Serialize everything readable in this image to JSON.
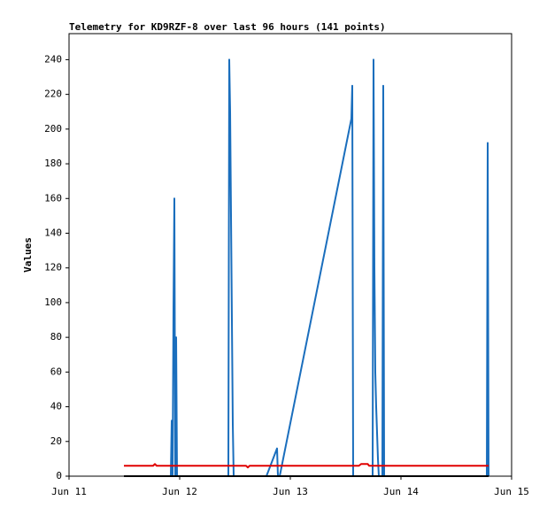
{
  "chart_data": {
    "type": "line",
    "title": "Telemetry for KD9RZF-8 over last 96 hours (141 points)",
    "y_label": "Values",
    "xlim": [
      11,
      15
    ],
    "xticks": [
      {
        "value": 11,
        "label": "Jun 11"
      },
      {
        "value": 12,
        "label": "Jun 12"
      },
      {
        "value": 13,
        "label": "Jun 13"
      },
      {
        "value": 14,
        "label": "Jun 14"
      },
      {
        "value": 15,
        "label": "Jun 15"
      }
    ],
    "ylim": [
      0,
      255
    ],
    "yticks": [
      0,
      20,
      40,
      60,
      80,
      100,
      120,
      140,
      160,
      180,
      200,
      220,
      240
    ],
    "series": [
      {
        "color": "#000000",
        "x": [
          11.496,
          14.792
        ],
        "values": [
          0,
          0
        ]
      },
      {
        "color": "#e00000",
        "x": [
          11.496,
          11.76,
          11.776,
          11.792,
          12.6,
          12.616,
          12.632,
          12.9,
          13.62,
          13.64,
          13.7,
          13.712,
          14.792
        ],
        "values": [
          6,
          6,
          7,
          6,
          6,
          5,
          6,
          6,
          6,
          7,
          7,
          6,
          6
        ]
      },
      {
        "color": "#1a6ebd",
        "x": [
          11.496,
          11.92,
          11.928,
          11.936,
          11.944,
          11.952,
          11.96,
          11.968,
          11.976,
          12.44,
          12.448,
          12.456,
          12.464,
          12.472,
          12.48,
          12.488,
          12.784,
          12.88,
          12.888,
          12.904,
          13.552,
          13.56,
          13.568,
          13.744,
          13.752,
          13.76,
          13.768,
          13.776,
          13.784,
          13.792,
          13.8,
          13.832,
          13.84,
          13.848,
          14.776,
          14.784,
          14.792
        ],
        "values": [
          0,
          0,
          32,
          0,
          96,
          160,
          0,
          80,
          0,
          0,
          240,
          210,
          150,
          90,
          30,
          0,
          0,
          16,
          0,
          0,
          206,
          225,
          0,
          0,
          240,
          120,
          60,
          40,
          25,
          10,
          0,
          0,
          225,
          0,
          0,
          192,
          0
        ]
      }
    ]
  }
}
